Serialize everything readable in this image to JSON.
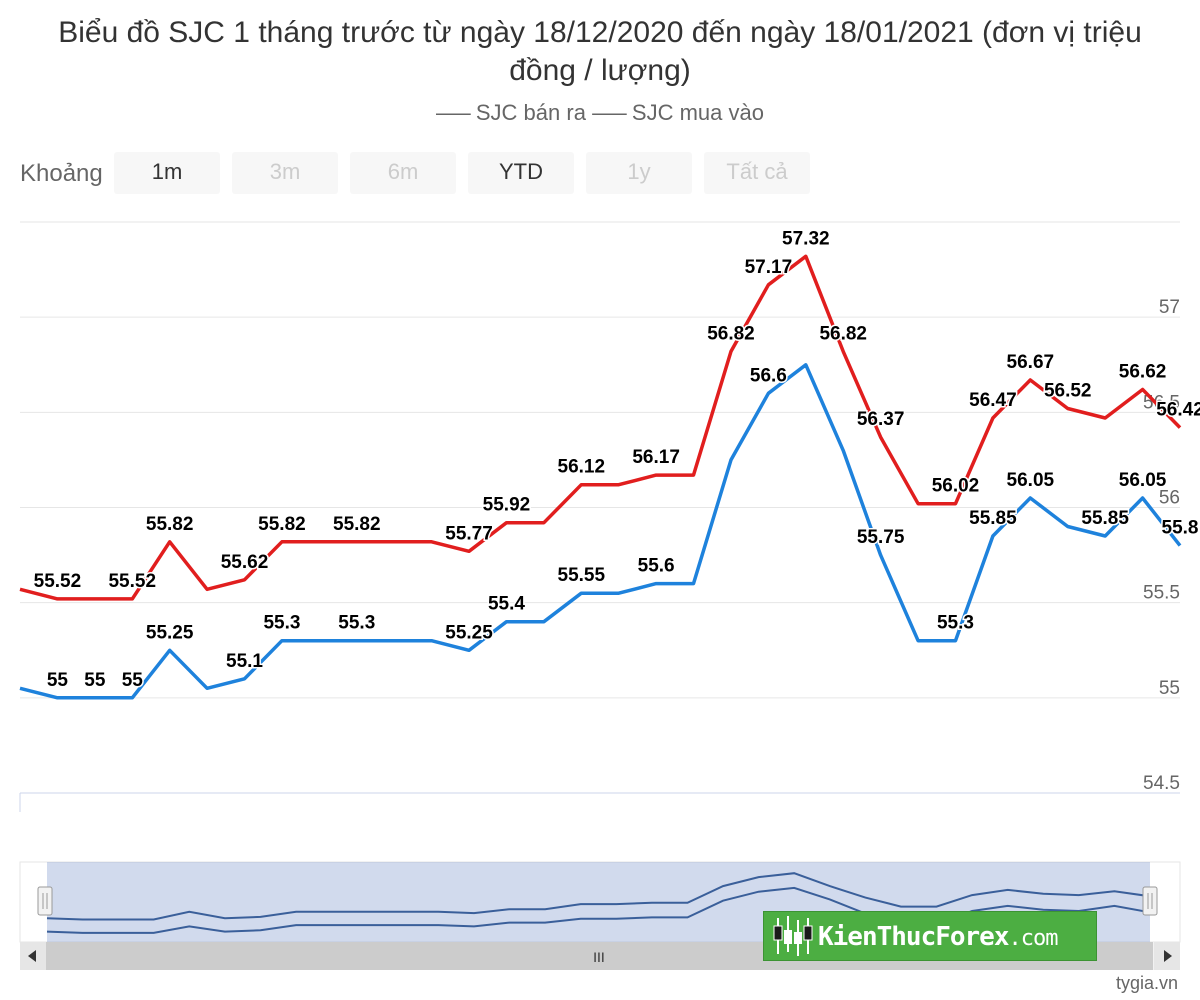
{
  "title": "Biểu đồ SJC 1 tháng trước từ ngày 18/12/2020 đến ngày 18/01/2021 (đơn vị triệu đồng / lượng)",
  "range_selector": {
    "label": "Khoảng",
    "buttons": [
      {
        "label": "1m",
        "enabled": true
      },
      {
        "label": "3m",
        "enabled": false
      },
      {
        "label": "6m",
        "enabled": false
      },
      {
        "label": "YTD",
        "enabled": true
      },
      {
        "label": "1y",
        "enabled": false
      },
      {
        "label": "Tất cả",
        "enabled": false
      }
    ]
  },
  "watermark": {
    "brand": "KienThucForex",
    "tld": ".com"
  },
  "credit": "tygia.vn",
  "scrollbar": {
    "thumb_grip": "III"
  },
  "chart_data": {
    "type": "line",
    "legend_position": "top-center",
    "grid": true,
    "y_axis_side": "right",
    "ylim": [
      54.5,
      57.5
    ],
    "yticks": [
      54.5,
      55,
      55.5,
      56,
      56.5,
      57
    ],
    "ytick_labels": [
      "54.5",
      "55",
      "55.5",
      "56",
      "56.5",
      "57"
    ],
    "series": [
      {
        "name": "SJC bán ra",
        "color": "#e11e1e",
        "values": [
          55.57,
          55.52,
          55.52,
          55.52,
          55.82,
          55.57,
          55.62,
          55.82,
          55.82,
          55.82,
          55.82,
          55.82,
          55.77,
          55.92,
          55.92,
          56.12,
          56.12,
          56.17,
          56.17,
          56.82,
          57.17,
          57.32,
          56.82,
          56.37,
          56.02,
          56.02,
          56.47,
          56.67,
          56.52,
          56.47,
          56.62,
          56.42
        ],
        "labels": [
          "",
          "55.52",
          "",
          "55.52",
          "55.82",
          "",
          "55.62",
          "55.82",
          "",
          "55.82",
          "",
          "",
          "55.77",
          "55.92",
          "",
          "56.12",
          "",
          "56.17",
          "",
          "56.82",
          "57.17",
          "57.32",
          "56.82",
          "56.37",
          "",
          "56.02",
          "56.47",
          "56.67",
          "56.52",
          "",
          "56.62",
          "56.42"
        ]
      },
      {
        "name": "SJC mua vào",
        "color": "#1e82dc",
        "values": [
          55.05,
          55.0,
          55.0,
          55.0,
          55.25,
          55.05,
          55.1,
          55.3,
          55.3,
          55.3,
          55.3,
          55.3,
          55.25,
          55.4,
          55.4,
          55.55,
          55.55,
          55.6,
          55.6,
          56.25,
          56.6,
          56.75,
          56.3,
          55.75,
          55.3,
          55.3,
          55.85,
          56.05,
          55.9,
          55.85,
          56.05,
          55.8
        ],
        "labels": [
          "",
          "55",
          "55",
          "55",
          "55.25",
          "",
          "55.1",
          "55.3",
          "",
          "55.3",
          "",
          "",
          "55.25",
          "55.4",
          "",
          "55.55",
          "",
          "55.6",
          "",
          "",
          "56.6",
          "",
          "",
          "55.75",
          "",
          "55.3",
          "55.85",
          "56.05",
          "",
          "55.85",
          "56.05",
          "55.8"
        ]
      }
    ]
  }
}
